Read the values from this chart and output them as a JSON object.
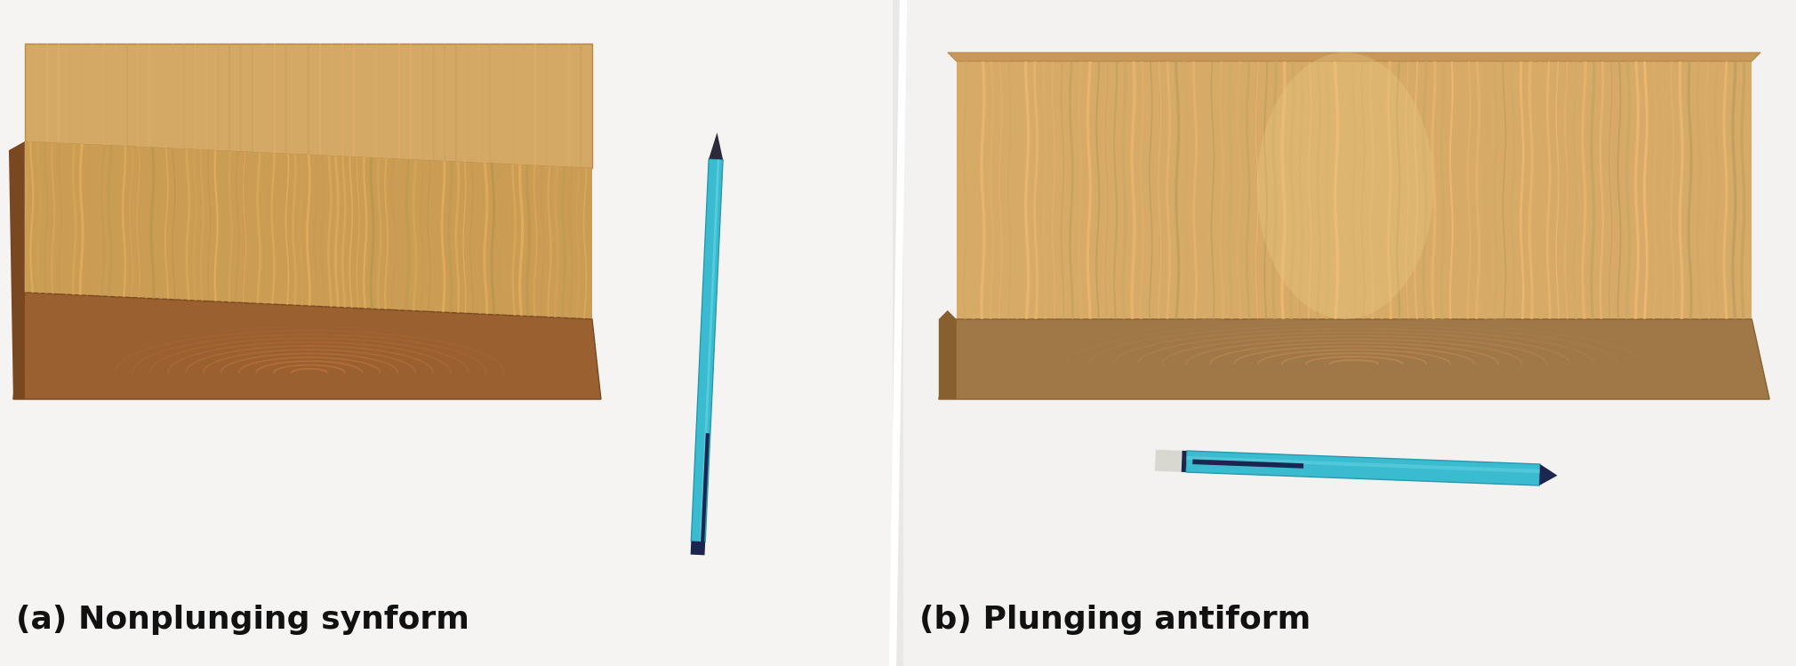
{
  "label_left": "(a) Nonplunging synform",
  "label_right": "(b) Plunging antiform",
  "label_fontsize": 26,
  "label_color": "#111111",
  "label_fontweight": "bold",
  "background_color": "#e8e8e8",
  "fig_width": 20.2,
  "fig_height": 7.49,
  "panel_bg": "#f0eeec",
  "wood_top_color": "#d4a865",
  "wood_front_color": "#c49050",
  "wood_end_color": "#8b5a2b",
  "wood_grain_dark": "#a0703a",
  "wood_grain_light": "#e8c880",
  "pen_body_color": "#3bbbd8",
  "pen_dark": "#1a2a50",
  "pen_tip_color": "#888888"
}
